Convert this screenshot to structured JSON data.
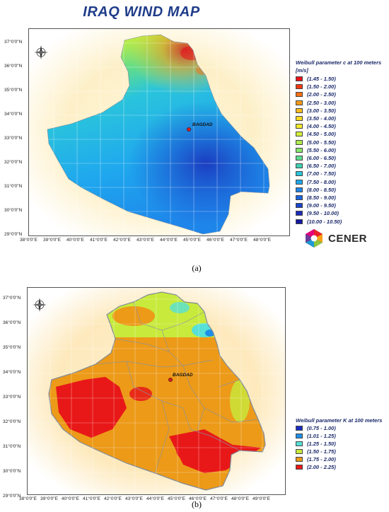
{
  "map_a": {
    "title": "IRAQ WIND MAP",
    "city": "BAGDAD",
    "legend_title_line1": "Weibull parameter c at 100 meters",
    "legend_title_line2": "[m/s]",
    "legend": [
      {
        "label": "(1.45 - 1.50)",
        "color": "#e8121a"
      },
      {
        "label": "(1.50 - 2.00)",
        "color": "#f23a12"
      },
      {
        "label": "(2.00 - 2.50)",
        "color": "#f86e14"
      },
      {
        "label": "(2.50 - 3.00)",
        "color": "#fb9a18"
      },
      {
        "label": "(3.00 - 3.50)",
        "color": "#fdbd1c"
      },
      {
        "label": "(3.50 - 4.00)",
        "color": "#fdd822"
      },
      {
        "label": "(4.00 - 4.50)",
        "color": "#f2ea2c"
      },
      {
        "label": "(4.50 - 5.00)",
        "color": "#d4ef3a"
      },
      {
        "label": "(5.00 - 5.50)",
        "color": "#b0ec4e"
      },
      {
        "label": "(5.50 - 6.00)",
        "color": "#88e66a"
      },
      {
        "label": "(6.00 - 6.50)",
        "color": "#5fdc8c"
      },
      {
        "label": "(6.50 - 7.00)",
        "color": "#3fd2b4"
      },
      {
        "label": "(7.00 - 7.50)",
        "color": "#2ac4dc"
      },
      {
        "label": "(7.50 - 8.00)",
        "color": "#1fa8ee"
      },
      {
        "label": "(8.00 - 8.50)",
        "color": "#1e86ea"
      },
      {
        "label": "(8.50 - 9.00)",
        "color": "#1c64dc"
      },
      {
        "label": "(9.00 - 9.50)",
        "color": "#1a44cc"
      },
      {
        "label": "(9.50 - 10.00)",
        "color": "#1a2cb8"
      },
      {
        "label": "(10.00 - 10.50)",
        "color": "#1418a0"
      }
    ],
    "logo_text": "CENER",
    "caption": "(a)"
  },
  "map_b": {
    "city": "BAGDAD",
    "legend_title": "Weibull parameter K at 100 meters",
    "legend": [
      {
        "label": "(0.75 - 1.00)",
        "color": "#1a2cc4"
      },
      {
        "label": "(1.01 - 1.25)",
        "color": "#1e8ee8"
      },
      {
        "label": "(1.25 - 1.50)",
        "color": "#56e0d6"
      },
      {
        "label": "(1.50 - 1.75)",
        "color": "#c8ea3c"
      },
      {
        "label": "(1.75 - 2.00)",
        "color": "#ec9a18"
      },
      {
        "label": "(2.00 - 2.25)",
        "color": "#e81818"
      }
    ],
    "caption": "(b)"
  },
  "lat_labels": [
    "37°0'0\"N",
    "36°0'0\"N",
    "35°0'0\"N",
    "34°0'0\"N",
    "33°0'0\"N",
    "32°0'0\"N",
    "31°0'0\"N",
    "30°0'0\"N",
    "29°0'0\"N"
  ],
  "lon_labels": [
    "38°0'0\"E",
    "39°0'0\"E",
    "40°0'0\"E",
    "41°0'0\"E",
    "42°0'0\"E",
    "43°0'0\"E",
    "44°0'0\"E",
    "45°0'0\"E",
    "46°0'0\"E",
    "47°0'0\"E",
    "48°0'0\"E",
    "49°0'0\"E"
  ],
  "lat_labels_a": [
    "37°0'0\"N",
    "36°0'0\"N",
    "35°0'0\"N",
    "34°0'0\"N",
    "33°0'0\"N",
    "32°0'0\"N",
    "31°0'0\"N",
    "30°0'0\"N",
    "29°0'0\"N"
  ],
  "lon_labels_a": [
    "38°0'0\"E",
    "39°0'0\"E",
    "40°0'0\"E",
    "41°0'0\"E",
    "42°0'0\"E",
    "43°0'0\"E",
    "44°0'0\"E",
    "45°0'0\"E",
    "46°0'0\"E",
    "47°0'0\"E",
    "48°0'0\"E"
  ],
  "compass": {
    "n": "N",
    "s": "S",
    "e": "E",
    "w": "W"
  }
}
